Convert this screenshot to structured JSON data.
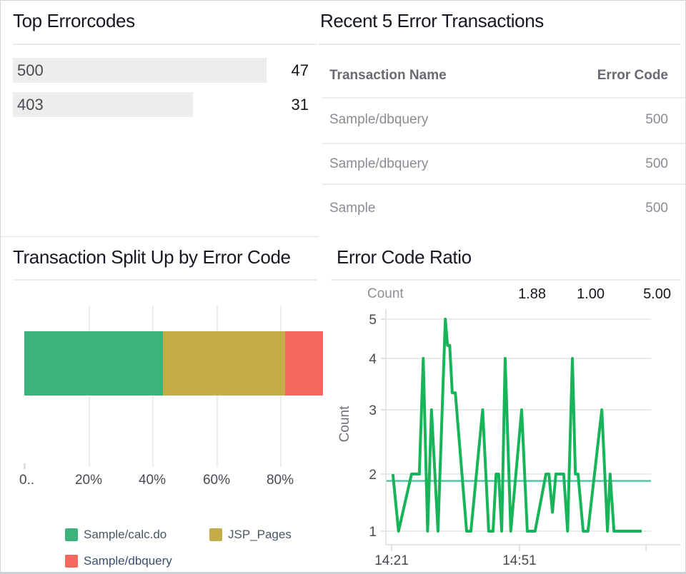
{
  "chart_data": [
    {
      "id": "top_errorcodes",
      "type": "bar",
      "title": "Top Errorcodes",
      "orientation": "horizontal",
      "categories": [
        "500",
        "403"
      ],
      "values": [
        47,
        31
      ],
      "bar_color": "#ededed"
    },
    {
      "id": "recent_error_transactions",
      "type": "table",
      "title": "Recent 5 Error Transactions",
      "columns": [
        "Transaction Name",
        "Error Code"
      ],
      "rows": [
        [
          "Sample/dbquery",
          "500"
        ],
        [
          "Sample/dbquery",
          "500"
        ],
        [
          "Sample",
          "500"
        ]
      ]
    },
    {
      "id": "transaction_split",
      "type": "stacked-bar",
      "title": "Transaction Split Up by Error Code",
      "axis_max_pct": 93.3,
      "series": [
        {
          "name": "Sample/calc.do",
          "value_pct": 43.3,
          "color": "#3cb27c",
          "legend_color": "#4b5663"
        },
        {
          "name": "JSP_Pages",
          "value_pct": 38.2,
          "color": "#c5ac49",
          "legend_color": "#4b5663"
        },
        {
          "name": "Sample/dbquery",
          "value_pct": 11.8,
          "color": "#f5685f",
          "legend_color": "#3a4f6d"
        }
      ],
      "x_ticks": [
        {
          "pct": 0,
          "label": "0.."
        },
        {
          "pct": 20,
          "label": "20%"
        },
        {
          "pct": 40,
          "label": "40%"
        },
        {
          "pct": 60,
          "label": "60%"
        },
        {
          "pct": 80,
          "label": "80%"
        }
      ],
      "legend_position": "bottom"
    },
    {
      "id": "error_code_ratio",
      "type": "line",
      "title": "Error Code Ratio",
      "ylabel": "Count",
      "stats": {
        "avg": "1.88",
        "min": "1.00",
        "max": "5.00"
      },
      "ylim": [
        1,
        5
      ],
      "y_ticks": [
        "1",
        "2",
        "3",
        "4",
        "5"
      ],
      "x_ticks": [
        {
          "min": 0,
          "label": "14:21"
        },
        {
          "min": 29.5,
          "label": "14:51"
        },
        {
          "min": 58.7,
          "label": ""
        }
      ],
      "x_unit": "minutes after 14:21",
      "reference_line": 1.88,
      "line_color": "#17b45a",
      "reference_color": "#58c3a5",
      "points": [
        [
          0.3,
          2
        ],
        [
          1.6,
          1
        ],
        [
          4.6,
          2
        ],
        [
          6.4,
          2
        ],
        [
          7.3,
          4
        ],
        [
          8.3,
          1
        ],
        [
          9.2,
          3
        ],
        [
          10.7,
          1
        ],
        [
          12.4,
          5
        ],
        [
          12.9,
          4.33
        ],
        [
          13.4,
          4.33
        ],
        [
          14.0,
          3.33
        ],
        [
          14.7,
          3.33
        ],
        [
          17.3,
          1
        ],
        [
          18.3,
          1
        ],
        [
          21.0,
          3
        ],
        [
          22.4,
          1
        ],
        [
          23.4,
          1
        ],
        [
          24.1,
          2
        ],
        [
          24.7,
          2
        ],
        [
          25.4,
          1
        ],
        [
          26.2,
          4
        ],
        [
          27.5,
          1
        ],
        [
          30.0,
          3
        ],
        [
          31.3,
          1
        ],
        [
          33.1,
          1
        ],
        [
          35.6,
          2
        ],
        [
          36.3,
          2
        ],
        [
          37.1,
          1.33
        ],
        [
          37.9,
          2
        ],
        [
          39.7,
          2
        ],
        [
          40.6,
          1
        ],
        [
          41.7,
          4
        ],
        [
          42.4,
          2
        ],
        [
          43.0,
          2
        ],
        [
          44.2,
          1
        ],
        [
          45.3,
          1
        ],
        [
          48.5,
          3
        ],
        [
          49.8,
          1
        ],
        [
          50.4,
          2
        ],
        [
          51.3,
          1
        ],
        [
          52.9,
          1
        ],
        [
          57.7,
          1
        ]
      ]
    }
  ]
}
